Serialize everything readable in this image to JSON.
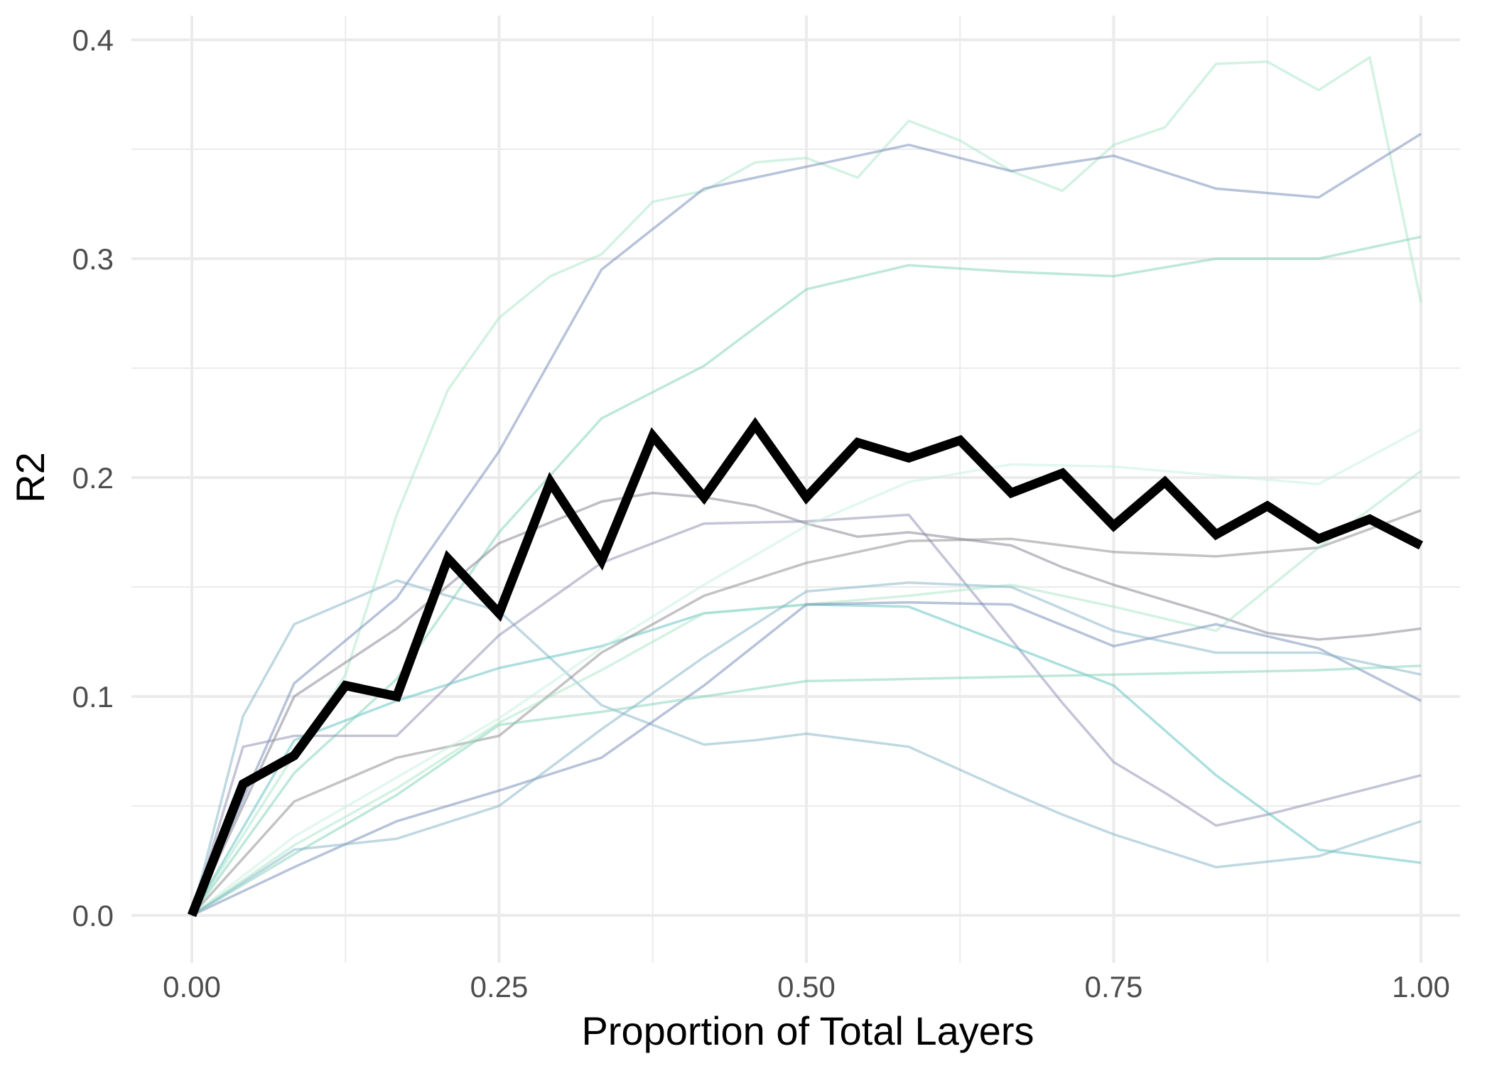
{
  "chart_data": {
    "type": "line",
    "title": "",
    "xlabel": "Proportion of Total Layers",
    "ylabel": "R2",
    "xlim": [
      0,
      1
    ],
    "ylim": [
      0,
      0.4
    ],
    "xticks": [
      0,
      0.25,
      0.5,
      0.75,
      1
    ],
    "xtick_labels": [
      "0.00",
      "0.25",
      "0.50",
      "0.75",
      "1.00"
    ],
    "yticks": [
      0,
      0.1,
      0.2,
      0.3,
      0.4
    ],
    "ytick_labels": [
      "0.0",
      "0.1",
      "0.2",
      "0.3",
      "0.4"
    ],
    "grid": true,
    "legend": "none",
    "colors": {
      "highlight": "#000000",
      "grid": "#ebebeb",
      "faint": [
        "#a8e6c8",
        "#7088b3",
        "#7ed1b5",
        "#7fb1c6",
        "#7e7e8e",
        "#8a8ab0",
        "#5cc0c0",
        "#888888",
        "#c6f0dd"
      ]
    },
    "series": [
      {
        "x": [
          0,
          0.0417,
          0.0833,
          0.125,
          0.1667,
          0.2083,
          0.25,
          0.2917,
          0.3333,
          0.375,
          0.4167,
          0.4583,
          0.5,
          0.5417,
          0.5833,
          0.625,
          0.6667,
          0.7083,
          0.75,
          0.7917,
          0.8333,
          0.875,
          0.9167,
          0.9583,
          1.0
        ],
        "y": [
          0,
          0.06,
          0.073,
          0.105,
          0.1,
          0.163,
          0.138,
          0.198,
          0.162,
          0.219,
          0.191,
          0.224,
          0.191,
          0.216,
          0.209,
          0.217,
          0.193,
          0.202,
          0.178,
          0.198,
          0.174,
          0.187,
          0.172,
          0.181,
          0.169
        ],
        "role": "highlight"
      },
      {
        "x": [
          0,
          0.125,
          0.1667,
          0.2083,
          0.25,
          0.2917,
          0.3333,
          0.375,
          0.4167,
          0.4583,
          0.5,
          0.5417,
          0.5833,
          0.625,
          0.6667,
          0.7083,
          0.75,
          0.7917,
          0.8333,
          0.875,
          0.9167,
          0.9583,
          1.0
        ],
        "y": [
          0,
          0.11,
          0.183,
          0.24,
          0.273,
          0.292,
          0.302,
          0.326,
          0.331,
          0.344,
          0.346,
          0.337,
          0.363,
          0.354,
          0.34,
          0.331,
          0.352,
          0.36,
          0.389,
          0.39,
          0.377,
          0.392,
          0.28
        ]
      },
      {
        "x": [
          0,
          0.0833,
          0.1667,
          0.25,
          0.3333,
          0.4167,
          0.5,
          0.5833,
          0.6667,
          0.75,
          0.8333,
          0.9167,
          1.0
        ],
        "y": [
          0,
          0.106,
          0.145,
          0.212,
          0.295,
          0.332,
          0.342,
          0.352,
          0.34,
          0.347,
          0.332,
          0.328,
          0.357
        ]
      },
      {
        "x": [
          0,
          0.0833,
          0.1667,
          0.25,
          0.3333,
          0.4167,
          0.5,
          0.5833,
          0.6667,
          0.75,
          0.8333,
          0.9167,
          1.0
        ],
        "y": [
          0,
          0.065,
          0.108,
          0.175,
          0.227,
          0.251,
          0.286,
          0.297,
          0.294,
          0.292,
          0.3,
          0.3,
          0.31
        ]
      },
      {
        "x": [
          0,
          0.0417,
          0.0833,
          0.1667,
          0.25,
          0.3333,
          0.375,
          0.4167,
          0.4583,
          0.5,
          0.5417,
          0.5833,
          0.6667,
          0.7083,
          0.75,
          0.8333,
          0.9167,
          0.9583,
          1.0
        ],
        "y": [
          0,
          0.091,
          0.133,
          0.153,
          0.139,
          0.096,
          0.087,
          0.078,
          0.08,
          0.083,
          0.08,
          0.077,
          0.056,
          0.046,
          0.037,
          0.022,
          0.027,
          0.035,
          0.043
        ]
      },
      {
        "x": [
          0,
          0.0833,
          0.1667,
          0.25,
          0.3333,
          0.375,
          0.4167,
          0.4583,
          0.5,
          0.5417,
          0.5833,
          0.6667,
          0.7083,
          0.75,
          0.8333,
          0.875,
          0.9167,
          0.9583,
          1.0
        ],
        "y": [
          0,
          0.1,
          0.131,
          0.17,
          0.189,
          0.193,
          0.191,
          0.187,
          0.179,
          0.173,
          0.175,
          0.169,
          0.159,
          0.151,
          0.137,
          0.129,
          0.126,
          0.128,
          0.131
        ]
      },
      {
        "x": [
          0,
          0.0417,
          0.0833,
          0.125,
          0.1667,
          0.25,
          0.3333,
          0.4167,
          0.5,
          0.5833,
          0.6667,
          0.7083,
          0.75,
          0.7917,
          0.8333,
          0.875,
          0.9167,
          0.9583,
          1.0
        ],
        "y": [
          0,
          0.077,
          0.082,
          0.082,
          0.082,
          0.128,
          0.161,
          0.179,
          0.18,
          0.183,
          0.126,
          0.097,
          0.07,
          0.056,
          0.041,
          0.046,
          0.052,
          0.058,
          0.064
        ]
      },
      {
        "x": [
          0,
          0.0833,
          0.1667,
          0.25,
          0.3333,
          0.4167,
          0.5,
          0.5833,
          0.6667,
          0.75,
          0.8333,
          0.9167,
          1.0
        ],
        "y": [
          0,
          0.08,
          0.098,
          0.113,
          0.123,
          0.138,
          0.142,
          0.141,
          0.123,
          0.105,
          0.064,
          0.03,
          0.024
        ]
      },
      {
        "x": [
          0,
          0.0833,
          0.1667,
          0.25,
          0.3333,
          0.4167,
          0.5,
          0.5833,
          0.6667,
          0.75,
          0.8333,
          0.9167,
          1.0
        ],
        "y": [
          0,
          0.052,
          0.072,
          0.082,
          0.12,
          0.146,
          0.161,
          0.171,
          0.172,
          0.166,
          0.164,
          0.168,
          0.185
        ]
      },
      {
        "x": [
          0,
          0.0833,
          0.1667,
          0.25,
          0.3333,
          0.4167,
          0.5,
          0.5833,
          0.6667,
          0.75,
          0.8333,
          0.9167,
          1.0
        ],
        "y": [
          0,
          0.036,
          0.063,
          0.09,
          0.122,
          0.151,
          0.178,
          0.198,
          0.206,
          0.205,
          0.201,
          0.197,
          0.222
        ]
      },
      {
        "x": [
          0,
          0.0833,
          0.1667,
          0.25,
          0.3333,
          0.4167,
          0.5,
          0.5833,
          0.6667,
          0.75,
          0.8333,
          0.9167,
          1.0
        ],
        "y": [
          0,
          0.032,
          0.058,
          0.088,
          0.112,
          0.138,
          0.142,
          0.146,
          0.151,
          0.141,
          0.13,
          0.168,
          0.203
        ]
      },
      {
        "x": [
          0,
          0.0833,
          0.1667,
          0.25,
          0.3333,
          0.4167,
          0.5,
          0.5833,
          0.6667,
          0.75,
          0.8333,
          0.9167,
          1.0
        ],
        "y": [
          0,
          0.022,
          0.043,
          0.057,
          0.072,
          0.105,
          0.142,
          0.143,
          0.142,
          0.123,
          0.133,
          0.122,
          0.098
        ]
      },
      {
        "x": [
          0,
          0.0833,
          0.1667,
          0.25,
          0.3333,
          0.4167,
          0.5,
          0.5833,
          0.6667,
          0.75,
          0.8333,
          0.9167,
          1.0
        ],
        "y": [
          0,
          0.028,
          0.055,
          0.087,
          0.093,
          0.1,
          0.107,
          0.108,
          0.109,
          0.11,
          0.111,
          0.112,
          0.114
        ]
      },
      {
        "x": [
          0,
          0.0833,
          0.1667,
          0.25,
          0.3333,
          0.4167,
          0.5,
          0.5833,
          0.6667,
          0.75,
          0.8333,
          0.9167,
          1.0
        ],
        "y": [
          0,
          0.03,
          0.035,
          0.05,
          0.085,
          0.118,
          0.148,
          0.152,
          0.15,
          0.13,
          0.12,
          0.12,
          0.11
        ]
      }
    ]
  }
}
